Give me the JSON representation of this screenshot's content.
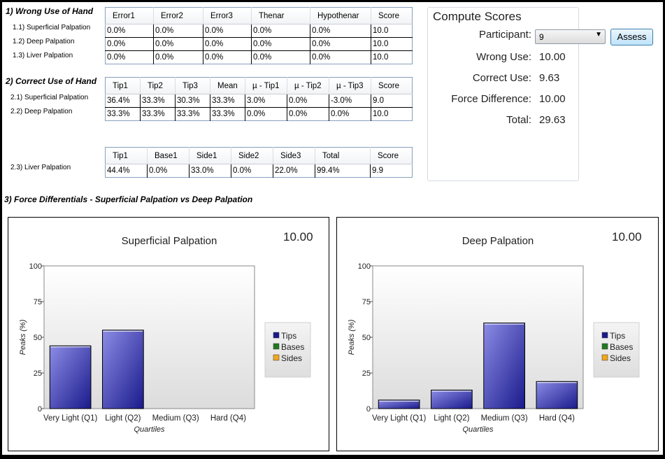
{
  "wrong_use": {
    "title": "1) Wrong Use of Hand",
    "row_labels": [
      "1.1) Superficial Palpation",
      "1.2) Deep Palpation",
      "1.3) Liver Palpation"
    ],
    "headers": [
      "Error1",
      "Error2",
      "Error3",
      "Thenar",
      "Hypothenar",
      "Score"
    ],
    "rows": [
      [
        "0.0%",
        "0.0%",
        "0.0%",
        "0.0%",
        "0.0%",
        "10.0"
      ],
      [
        "0.0%",
        "0.0%",
        "0.0%",
        "0.0%",
        "0.0%",
        "10.0"
      ],
      [
        "0.0%",
        "0.0%",
        "0.0%",
        "0.0%",
        "0.0%",
        "10.0"
      ]
    ]
  },
  "correct_use": {
    "title": "2) Correct Use of Hand",
    "row_labels": [
      "2.1) Superficial Palpation",
      "2.2) Deep Palpation"
    ],
    "headers": [
      "Tip1",
      "Tip2",
      "Tip3",
      "Mean",
      "µ - Tip1",
      "µ - Tip2",
      "µ - Tip3",
      "Score"
    ],
    "rows": [
      [
        "36.4%",
        "33.3%",
        "30.3%",
        "33.3%",
        "3.0%",
        "0.0%",
        "-3.0%",
        "9.0"
      ],
      [
        "33.3%",
        "33.3%",
        "33.3%",
        "33.3%",
        "0.0%",
        "0.0%",
        "0.0%",
        "10.0"
      ]
    ]
  },
  "liver": {
    "row_label": "2.3) Liver Palpation",
    "headers": [
      "Tip1",
      "Base1",
      "Side1",
      "Side2",
      "Side3",
      "Total",
      "Score"
    ],
    "rows": [
      [
        "44.4%",
        "0.0%",
        "33.0%",
        "0.0%",
        "22.0%",
        "99.4%",
        "9.9"
      ]
    ]
  },
  "compute": {
    "title": "Compute Scores",
    "participant_label": "Participant:",
    "participant_value": "9",
    "assess_label": "Assess",
    "wrong_use_label": "Wrong Use:",
    "wrong_use_value": "10.00",
    "correct_use_label": "Correct Use:",
    "correct_use_value": "9.63",
    "force_diff_label": "Force Difference:",
    "force_diff_value": "10.00",
    "total_label": "Total:",
    "total_value": "29.63"
  },
  "force_section": {
    "title": "3) Force Differentials - Superficial Palpation vs Deep Palpation"
  },
  "colors": {
    "tips": "#1a1a8c",
    "bases": "#1f7a1f",
    "sides": "#f0a81c"
  },
  "chart_data": [
    {
      "type": "bar",
      "title": "Superficial Palpation",
      "score": "10.00",
      "xlabel": "Quartiles",
      "ylabel": "Peaks (%)",
      "ylim": [
        0,
        100
      ],
      "yticks": [
        "0",
        "25",
        "50",
        "75",
        "100"
      ],
      "categories": [
        "Very Light (Q1)",
        "Light (Q2)",
        "Medium (Q3)",
        "Hard (Q4)"
      ],
      "series": [
        {
          "name": "Tips",
          "values": [
            44,
            55,
            0,
            0
          ]
        }
      ],
      "legend": [
        "Tips",
        "Bases",
        "Sides"
      ],
      "legend_position": "right",
      "grid": false
    },
    {
      "type": "bar",
      "title": "Deep Palpation",
      "score": "10.00",
      "xlabel": "Quartiles",
      "ylabel": "Peaks (%)",
      "ylim": [
        0,
        100
      ],
      "yticks": [
        "0",
        "25",
        "50",
        "75",
        "100"
      ],
      "categories": [
        "Very Light (Q1)",
        "Light (Q2)",
        "Medium (Q3)",
        "Hard (Q4)"
      ],
      "series": [
        {
          "name": "Tips",
          "values": [
            6,
            13,
            60,
            19
          ]
        }
      ],
      "legend": [
        "Tips",
        "Bases",
        "Sides"
      ],
      "legend_position": "right",
      "grid": false
    }
  ]
}
